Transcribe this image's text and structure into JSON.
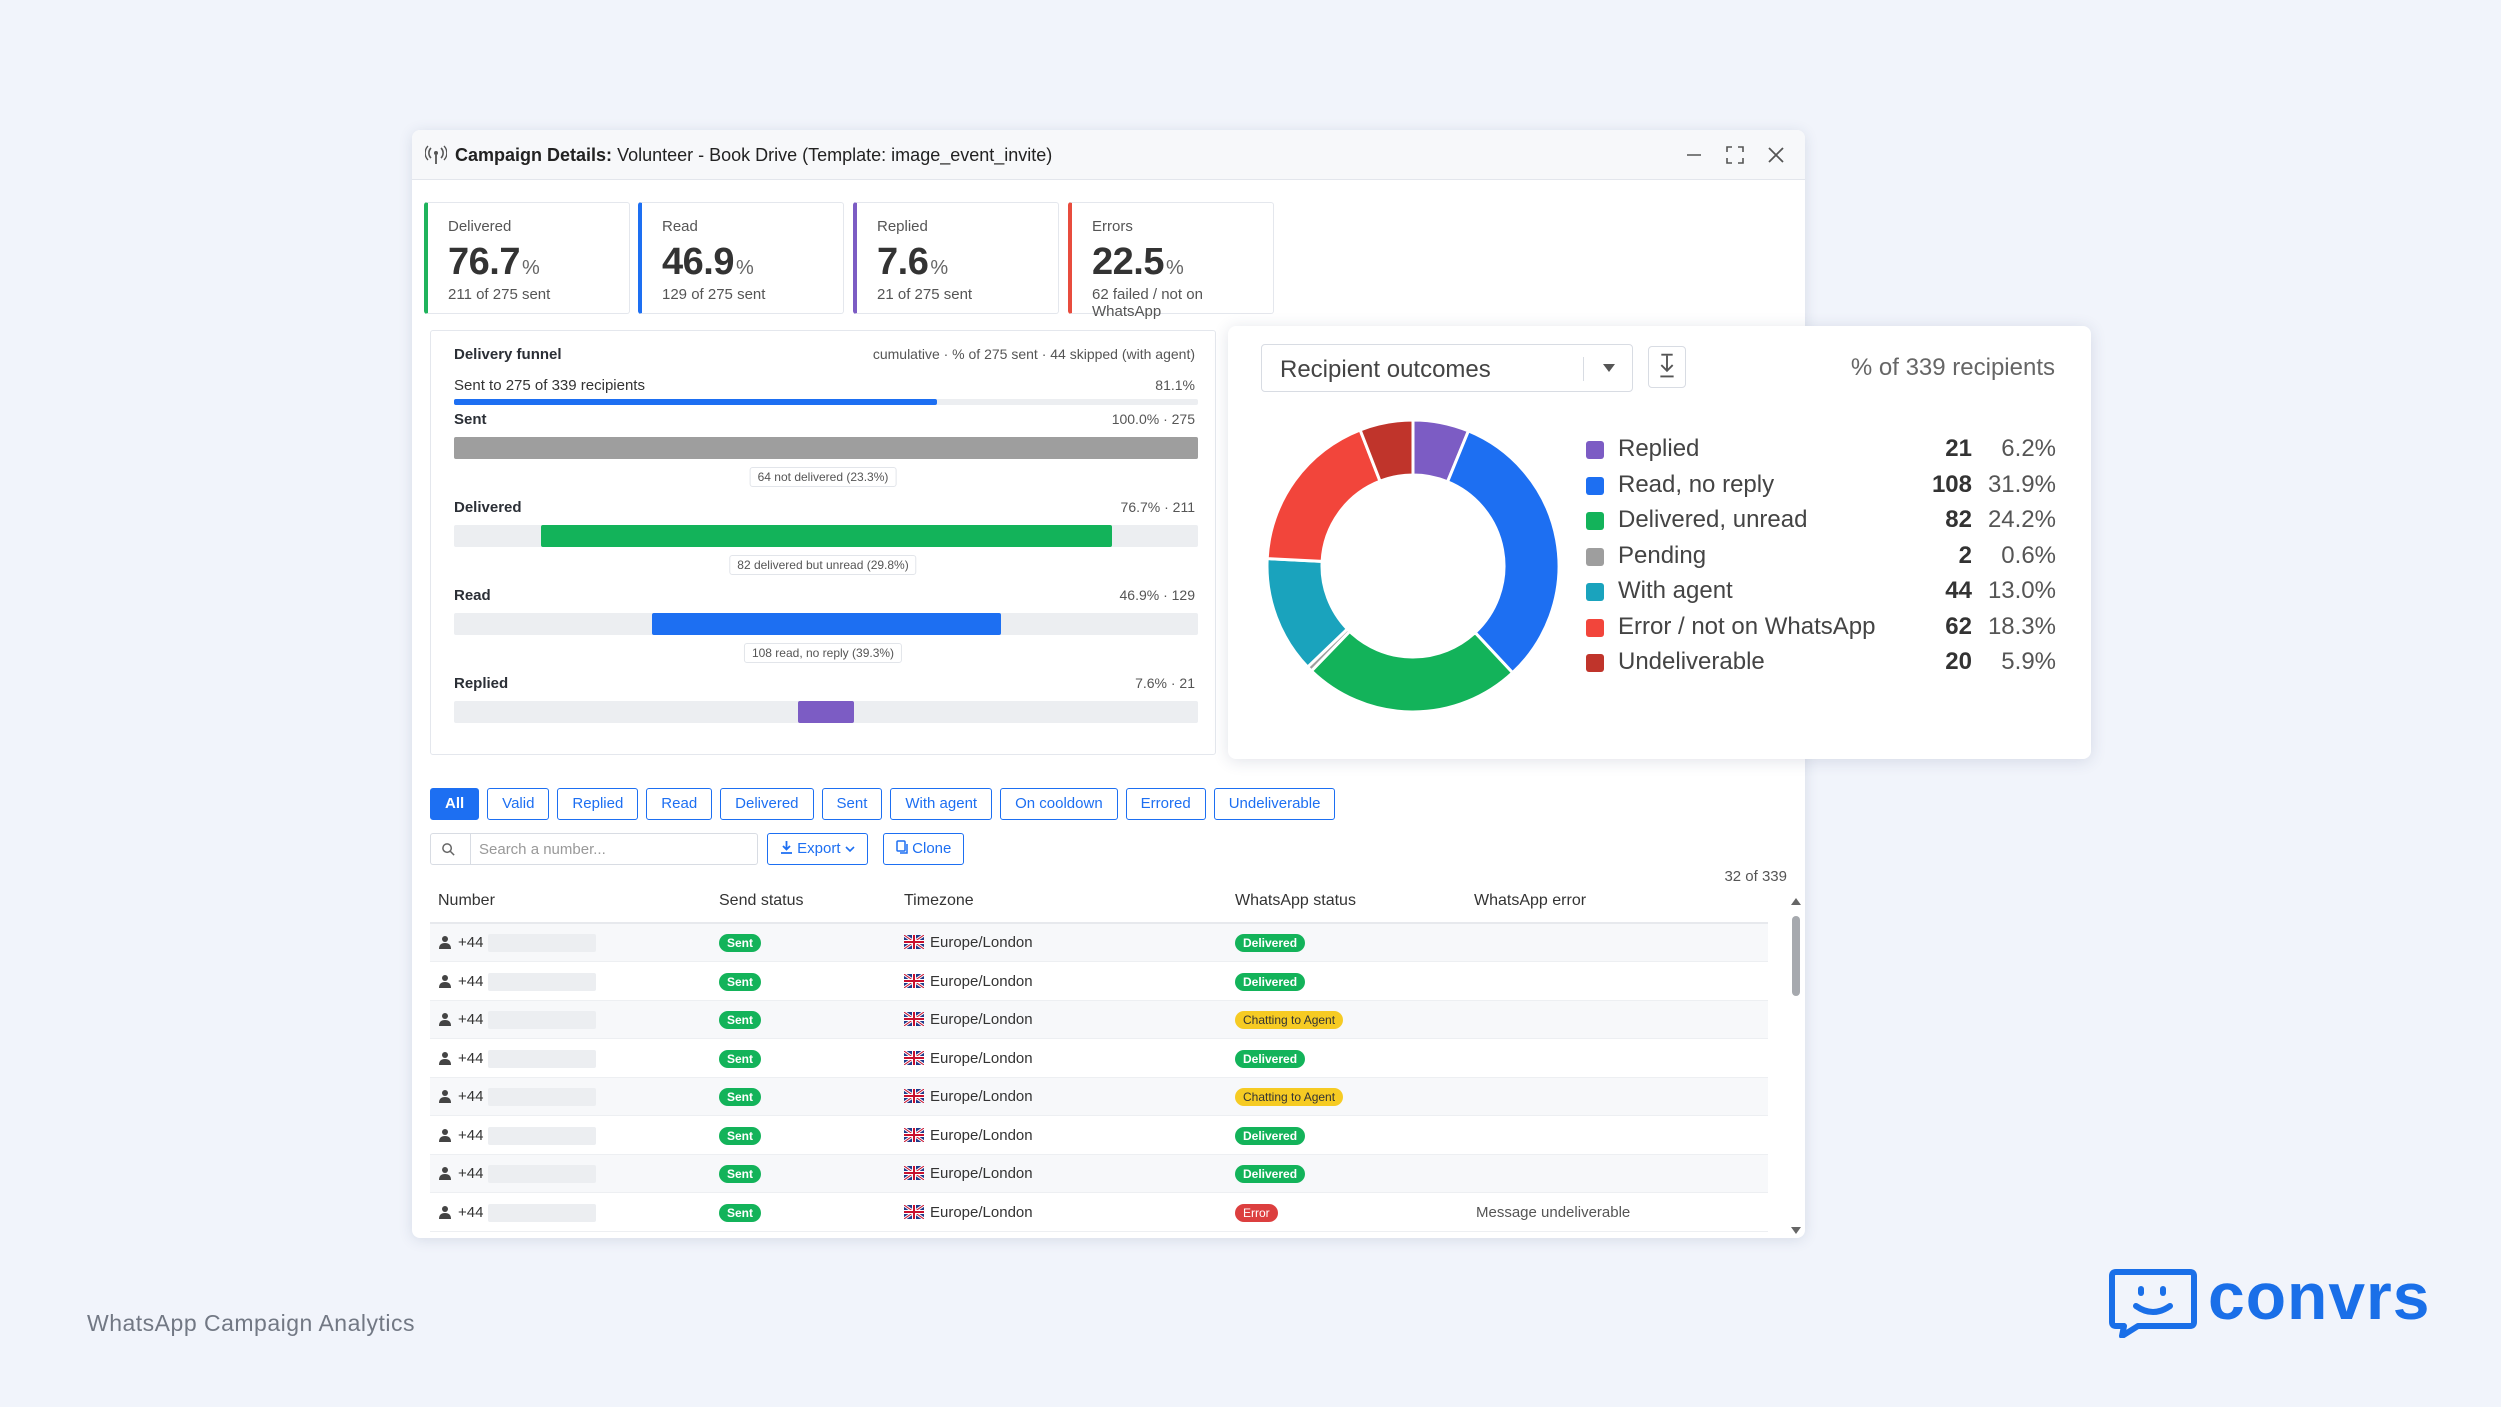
{
  "window": {
    "title_bold": "Campaign Details:",
    "title_rest": "Volunteer - Book Drive (Template: image_event_invite)"
  },
  "stats": [
    {
      "label": "Delivered",
      "value": "76.7",
      "unit": "%",
      "sub": "211 of 275 sent",
      "color": "#1fb35c"
    },
    {
      "label": "Read",
      "value": "46.9",
      "unit": "%",
      "sub": "129 of 275 sent",
      "color": "#1d6ff2"
    },
    {
      "label": "Replied",
      "value": "7.6",
      "unit": "%",
      "sub": "21 of 275 sent",
      "color": "#7c5cc4"
    },
    {
      "label": "Errors",
      "value": "22.5",
      "unit": "%",
      "sub": "62 failed / not on WhatsApp",
      "color": "#e84c3d"
    }
  ],
  "funnel": {
    "title": "Delivery funnel",
    "meta": "cumulative · % of 275 sent · 44 skipped (with agent)",
    "sent_to": "Sent to 275 of 339 recipients",
    "sent_to_pct": "81.1%",
    "sent_to_fraction": 0.811,
    "stages": [
      {
        "name": "Sent",
        "stat": "100.0% · 275",
        "start": 0.0,
        "fraction": 1.0,
        "color": "#9e9e9e"
      },
      {
        "name": "Delivered",
        "stat": "76.7% · 211",
        "start": 0.117,
        "fraction": 0.767,
        "color": "#13b35a"
      },
      {
        "name": "Read",
        "stat": "46.9% · 129",
        "start": 0.266,
        "fraction": 0.469,
        "color": "#1d6ff2"
      },
      {
        "name": "Replied",
        "stat": "7.6% · 21",
        "start": 0.462,
        "fraction": 0.076,
        "color": "#7c5cc4"
      }
    ],
    "drops": [
      "64 not delivered (23.3%)",
      "82 delivered but unread (29.8%)",
      "108 read, no reply (39.3%)"
    ]
  },
  "filters": [
    "All",
    "Valid",
    "Replied",
    "Read",
    "Delivered",
    "Sent",
    "With agent",
    "On cooldown",
    "Errored",
    "Undeliverable"
  ],
  "search": {
    "placeholder": "Search a number..."
  },
  "export_label": "Export",
  "clone_label": "Clone",
  "row_count": "32 of 339",
  "table": {
    "headers": [
      "Number",
      "Send status",
      "Timezone",
      "WhatsApp status",
      "WhatsApp error"
    ],
    "rows": [
      {
        "number": "+44",
        "send": "Sent",
        "tz": "Europe/London",
        "wa": "Delivered",
        "wa_kind": "g",
        "err": ""
      },
      {
        "number": "+44",
        "send": "Sent",
        "tz": "Europe/London",
        "wa": "Delivered",
        "wa_kind": "g",
        "err": ""
      },
      {
        "number": "+44",
        "send": "Sent",
        "tz": "Europe/London",
        "wa": "Chatting to Agent",
        "wa_kind": "y",
        "err": ""
      },
      {
        "number": "+44",
        "send": "Sent",
        "tz": "Europe/London",
        "wa": "Delivered",
        "wa_kind": "g",
        "err": ""
      },
      {
        "number": "+44",
        "send": "Sent",
        "tz": "Europe/London",
        "wa": "Chatting to Agent",
        "wa_kind": "y",
        "err": ""
      },
      {
        "number": "+44",
        "send": "Sent",
        "tz": "Europe/London",
        "wa": "Delivered",
        "wa_kind": "g",
        "err": ""
      },
      {
        "number": "+44",
        "send": "Sent",
        "tz": "Europe/London",
        "wa": "Delivered",
        "wa_kind": "g",
        "err": ""
      },
      {
        "number": "+44",
        "send": "Sent",
        "tz": "Europe/London",
        "wa": "Error",
        "wa_kind": "r",
        "err": "Message undeliverable"
      }
    ]
  },
  "outcomes": {
    "selector": "Recipient outcomes",
    "caption": "% of 339 recipients"
  },
  "chart_data": {
    "type": "pie",
    "title": "Recipient outcomes",
    "total": 339,
    "slices": [
      {
        "name": "Replied",
        "value": 21,
        "pct": "6.2%",
        "color": "#7c5cc4"
      },
      {
        "name": "Read, no reply",
        "value": 108,
        "pct": "31.9%",
        "color": "#1d6ff2"
      },
      {
        "name": "Delivered, unread",
        "value": 82,
        "pct": "24.2%",
        "color": "#13b35a"
      },
      {
        "name": "Pending",
        "value": 2,
        "pct": "0.6%",
        "color": "#9e9e9e"
      },
      {
        "name": "With agent",
        "value": 44,
        "pct": "13.0%",
        "color": "#1aa3bd"
      },
      {
        "name": "Error / not on WhatsApp",
        "value": 62,
        "pct": "18.3%",
        "color": "#f2453b"
      },
      {
        "name": "Undeliverable",
        "value": 20,
        "pct": "5.9%",
        "color": "#c0342b"
      }
    ],
    "legend": "right"
  },
  "footer": {
    "caption": "WhatsApp Campaign Analytics",
    "brand": "convrs"
  },
  "icons": {
    "title": "broadcast-icon",
    "minimize": "minimize-icon",
    "maximize": "maximize-icon",
    "close": "close-icon",
    "search": "search-icon",
    "export": "download-icon",
    "clone": "copy-icon",
    "user": "user-icon",
    "flag": "uk-flag-icon",
    "chart_download": "download-icon",
    "dropdown": "chevron-down-icon"
  }
}
